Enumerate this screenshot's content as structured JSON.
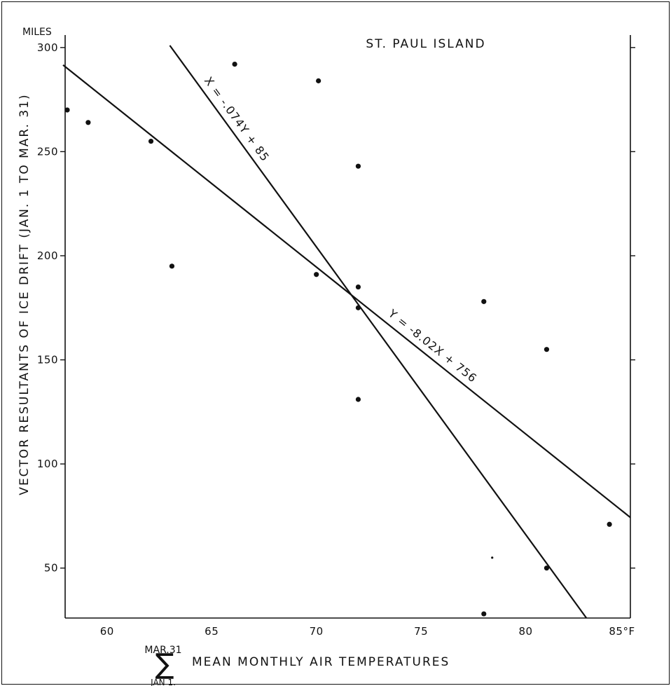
{
  "chart_data": {
    "type": "scatter",
    "title": "ST. PAUL ISLAND",
    "ylabel": "VECTOR RESULTANTS OF ICE DRIFT (JAN. 1 TO MAR. 31)",
    "y_unit": "MILES",
    "x_unit": "°F",
    "xlabel": {
      "summation_symbol": "∑",
      "upper_limit": "MAR.31",
      "lower_limit": "JAN 1.",
      "text": "MEAN MONTHLY AIR TEMPERATURES"
    },
    "xlim": [
      58,
      85
    ],
    "ylim": [
      26,
      306
    ],
    "x_ticks": [
      {
        "value": 60,
        "label": "60"
      },
      {
        "value": 65,
        "label": "65"
      },
      {
        "value": 70,
        "label": "70"
      },
      {
        "value": 75,
        "label": "75"
      },
      {
        "value": 80,
        "label": "80"
      },
      {
        "value": 85,
        "label": "85°F"
      }
    ],
    "y_ticks": [
      {
        "value": 50,
        "label": "50"
      },
      {
        "value": 100,
        "label": "100"
      },
      {
        "value": 150,
        "label": "150"
      },
      {
        "value": 200,
        "label": "200"
      },
      {
        "value": 250,
        "label": "250"
      },
      {
        "value": 300,
        "label": "300"
      }
    ],
    "grid": false,
    "points": [
      {
        "x": 58.1,
        "y": 270
      },
      {
        "x": 59.1,
        "y": 264
      },
      {
        "x": 62.1,
        "y": 255
      },
      {
        "x": 63.1,
        "y": 195
      },
      {
        "x": 66.1,
        "y": 292
      },
      {
        "x": 70.1,
        "y": 284
      },
      {
        "x": 70.0,
        "y": 191
      },
      {
        "x": 72.0,
        "y": 243
      },
      {
        "x": 72.0,
        "y": 185
      },
      {
        "x": 72.0,
        "y": 175
      },
      {
        "x": 72.0,
        "y": 131
      },
      {
        "x": 78.0,
        "y": 178
      },
      {
        "x": 78.0,
        "y": 28
      },
      {
        "x": 78.4,
        "y": 55
      },
      {
        "x": 81.0,
        "y": 155
      },
      {
        "x": 81.0,
        "y": 50
      },
      {
        "x": 84.0,
        "y": 71
      }
    ],
    "regression_lines": [
      {
        "label": "Y = -8.02X + 756",
        "points": [
          [
            57.9,
            291.6
          ],
          [
            85.0,
            74.3
          ]
        ]
      },
      {
        "label": "X = -.074Y + 85",
        "points": [
          [
            63.0,
            301.0
          ],
          [
            82.9,
            26.0
          ]
        ]
      }
    ]
  }
}
